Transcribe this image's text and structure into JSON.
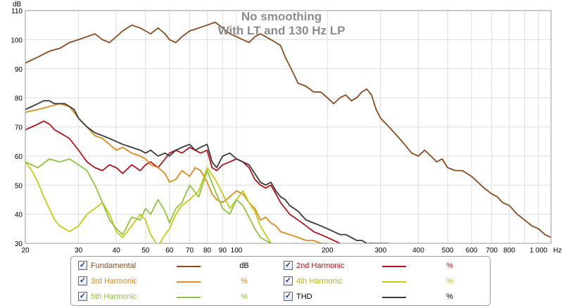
{
  "chart_data": {
    "type": "line",
    "title": "No smoothing",
    "subtitle": "With LT and 130 Hz LP",
    "ylabel": "dB",
    "xlabel": "Hz",
    "xscale": "log",
    "xlim": [
      20,
      1100
    ],
    "ylim": [
      30,
      110
    ],
    "yticks": [
      30,
      40,
      50,
      60,
      70,
      80,
      90,
      100,
      110
    ],
    "xticks": [
      {
        "v": 20,
        "label": "20"
      },
      {
        "v": 30,
        "label": "30"
      },
      {
        "v": 40,
        "label": "40"
      },
      {
        "v": 50,
        "label": "50"
      },
      {
        "v": 60,
        "label": "60"
      },
      {
        "v": 70,
        "label": "70"
      },
      {
        "v": 80,
        "label": "80"
      },
      {
        "v": 90,
        "label": "90"
      },
      {
        "v": 100,
        "label": "100"
      },
      {
        "v": 200,
        "label": "200"
      },
      {
        "v": 300,
        "label": "300"
      },
      {
        "v": 400,
        "label": "400"
      },
      {
        "v": 500,
        "label": "500"
      },
      {
        "v": 600,
        "label": "600"
      },
      {
        "v": 700,
        "label": "700"
      },
      {
        "v": 800,
        "label": "800"
      },
      {
        "v": 1000,
        "label": "1 000"
      }
    ],
    "series": [
      {
        "name": "Fundamental",
        "unit": "dB",
        "color": "#8b4b1f",
        "x": [
          20,
          22,
          24,
          26,
          28,
          30,
          32,
          34,
          36,
          38,
          40,
          42,
          45,
          48,
          50,
          52,
          55,
          58,
          60,
          63,
          66,
          70,
          75,
          80,
          85,
          90,
          95,
          100,
          105,
          110,
          115,
          120,
          125,
          130,
          135,
          140,
          145,
          150,
          155,
          160,
          170,
          180,
          190,
          200,
          210,
          220,
          230,
          240,
          250,
          260,
          270,
          280,
          290,
          300,
          320,
          340,
          360,
          380,
          400,
          420,
          440,
          460,
          480,
          500,
          530,
          560,
          600,
          630,
          660,
          700,
          730,
          760,
          800,
          850,
          900,
          950,
          1000,
          1050,
          1100
        ],
        "y": [
          92,
          94,
          96,
          97,
          99,
          100,
          101,
          102,
          100,
          99,
          101,
          103,
          105,
          104,
          103,
          102,
          104,
          102,
          100,
          99,
          101,
          103,
          104,
          105,
          106,
          104,
          102,
          101,
          100,
          99,
          101,
          102,
          101,
          100,
          99,
          98,
          94,
          91,
          88,
          85,
          84,
          82,
          82,
          80,
          78,
          80,
          81,
          79,
          80,
          82,
          83,
          81,
          76,
          73,
          70,
          67,
          64,
          61,
          60,
          62,
          60,
          58,
          59,
          56,
          55,
          55,
          53,
          51,
          49,
          47,
          46,
          44,
          43,
          40,
          38,
          36,
          35,
          33,
          32
        ]
      },
      {
        "name": "2nd Harmonic",
        "unit": "%",
        "color": "#b5121b",
        "x": [
          20,
          21,
          22,
          23,
          24,
          25,
          26,
          27,
          28,
          30,
          32,
          34,
          36,
          38,
          40,
          42,
          45,
          48,
          50,
          52,
          55,
          58,
          60,
          63,
          66,
          70,
          73,
          76,
          80,
          83,
          86,
          90,
          95,
          100,
          105,
          110,
          115,
          120,
          125,
          130,
          135,
          140,
          150,
          160,
          170,
          180,
          190,
          200,
          210,
          220
        ],
        "y": [
          69,
          70,
          71,
          72,
          71,
          69,
          68,
          67,
          66,
          62,
          58,
          56,
          55,
          57,
          56,
          54,
          57,
          55,
          57,
          58,
          56,
          59,
          61,
          62,
          61,
          63,
          62,
          61,
          62,
          56,
          55,
          57,
          58,
          59,
          58,
          56,
          52,
          50,
          49,
          50,
          47,
          44,
          40,
          38,
          36,
          34,
          33,
          32,
          31,
          30
        ]
      },
      {
        "name": "3rd Harmonic",
        "unit": "%",
        "color": "#e08b1a",
        "x": [
          20,
          22,
          24,
          26,
          28,
          30,
          32,
          34,
          36,
          38,
          40,
          42,
          45,
          48,
          50,
          52,
          55,
          58,
          60,
          63,
          66,
          70,
          73,
          76,
          80,
          83,
          86,
          90,
          95,
          100,
          105,
          110,
          115,
          120,
          125,
          130,
          135,
          140,
          150,
          160,
          170,
          180,
          190,
          200
        ],
        "y": [
          75,
          76,
          77,
          78,
          77,
          73,
          70,
          67,
          66,
          64,
          62,
          63,
          61,
          60,
          59,
          57,
          56,
          54,
          51,
          52,
          55,
          53,
          56,
          55,
          51,
          47,
          45,
          44,
          46,
          48,
          47,
          44,
          42,
          38,
          39,
          37,
          36,
          34,
          33,
          32,
          31,
          31,
          30,
          30
        ]
      },
      {
        "name": "4th Harmonic",
        "unit": "%",
        "color": "#c4cc12",
        "x": [
          20,
          21,
          22,
          23,
          24,
          25,
          26,
          28,
          30,
          32,
          34,
          36,
          38,
          40,
          42,
          45,
          48,
          50,
          52,
          55,
          58,
          60,
          63,
          66,
          70,
          75,
          80,
          85,
          90,
          95,
          100,
          105,
          110,
          115,
          120,
          130
        ],
        "y": [
          58,
          55,
          51,
          46,
          42,
          38,
          36,
          34,
          36,
          40,
          42,
          44,
          40,
          34,
          32,
          36,
          40,
          38,
          33,
          29,
          33,
          35,
          40,
          43,
          45,
          48,
          56,
          52,
          47,
          42,
          45,
          48,
          44,
          41,
          36,
          30
        ]
      },
      {
        "name": "5th Harmonic",
        "unit": "%",
        "color": "#8ec63a",
        "x": [
          20,
          22,
          24,
          26,
          28,
          30,
          32,
          34,
          36,
          38,
          40,
          42,
          45,
          48,
          50,
          52,
          55,
          58,
          60,
          63,
          66,
          70,
          75,
          80,
          85,
          90,
          95,
          100,
          105,
          110,
          115,
          120,
          130
        ],
        "y": [
          58,
          56,
          59,
          58,
          59,
          57,
          55,
          50,
          44,
          38,
          35,
          33,
          39,
          38,
          42,
          40,
          45,
          41,
          37,
          42,
          44,
          50,
          46,
          55,
          48,
          42,
          40,
          45,
          43,
          39,
          35,
          32,
          30
        ]
      },
      {
        "name": "THD",
        "unit": "%",
        "color": "#3a3a3a",
        "x": [
          20,
          21,
          22,
          23,
          24,
          25,
          26,
          27,
          28,
          29,
          30,
          32,
          34,
          36,
          38,
          40,
          42,
          45,
          48,
          50,
          52,
          55,
          58,
          60,
          63,
          66,
          70,
          73,
          76,
          80,
          83,
          86,
          90,
          95,
          100,
          105,
          110,
          115,
          120,
          125,
          130,
          135,
          140,
          145,
          150,
          155,
          160,
          170,
          180,
          190,
          200,
          210,
          220,
          230,
          240,
          250,
          260,
          270,
          280,
          300,
          320
        ],
        "y": [
          76,
          77,
          78,
          79,
          79,
          78,
          78,
          78,
          77,
          76,
          73,
          70,
          68,
          67,
          66,
          65,
          64,
          63,
          62,
          61,
          62,
          60,
          61,
          60,
          62,
          63,
          64,
          62,
          63,
          64,
          58,
          56,
          60,
          61,
          59,
          58,
          57,
          54,
          51,
          50,
          51,
          48,
          46,
          45,
          43,
          42,
          41,
          38,
          37,
          36,
          35,
          34,
          33,
          33,
          32,
          31,
          31,
          30,
          30,
          30,
          30
        ]
      }
    ]
  },
  "legend": {
    "items": [
      {
        "name": "Fundamental",
        "unit": "dB",
        "text_color": "#8b4b1f"
      },
      {
        "name": "2nd Harmonic",
        "unit": "%",
        "text_color": "#b5121b"
      },
      {
        "name": "3rd Harmonic",
        "unit": "%",
        "text_color": "#e08b1a"
      },
      {
        "name": "4th Harmonic",
        "unit": "%",
        "text_color": "#b8b812"
      },
      {
        "name": "5th Harmonic",
        "unit": "%",
        "text_color": "#8ec63a"
      },
      {
        "name": "THD",
        "unit": "%",
        "text_color": "#000000"
      }
    ]
  },
  "colors": {
    "grid": "#dcdcdc",
    "frame": "#9a9a9a",
    "title": "#8c8c8c",
    "axis_text": "#000000"
  }
}
